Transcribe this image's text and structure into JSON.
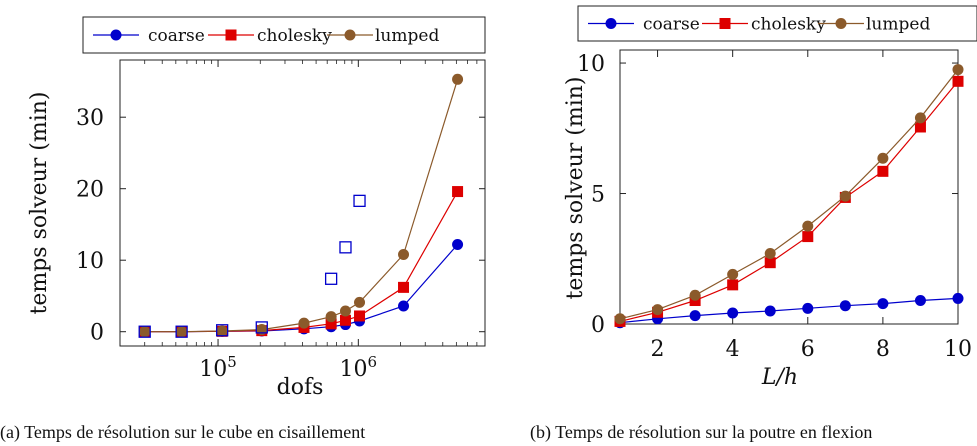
{
  "chart_data": [
    {
      "type": "line",
      "caption": "(a) Temps de résolution sur le cube en cisaillement",
      "xlabel": "dofs",
      "ylabel": "temps solveur (min)",
      "xscale": "log",
      "xlim": [
        20000,
        8000000
      ],
      "ylim": [
        -2,
        38
      ],
      "xticks": [
        {
          "value": 100000,
          "base": "10",
          "exp": "5"
        },
        {
          "value": 1000000,
          "base": "10",
          "exp": "6"
        }
      ],
      "yticks": [
        0,
        10,
        20,
        30
      ],
      "legend_position": "top",
      "series": [
        {
          "name": "coarse",
          "color": "#0000cc",
          "marker": "circle",
          "x": [
            30000,
            55000,
            107000,
            205000,
            410000,
            640000,
            810000,
            1020000,
            2100000,
            5100000
          ],
          "y": [
            0.0,
            0.0,
            0.05,
            0.1,
            0.4,
            0.7,
            1.0,
            1.5,
            3.6,
            12.2
          ]
        },
        {
          "name": "cholesky",
          "color": "#dd0000",
          "marker": "square",
          "x": [
            30000,
            55000,
            107000,
            205000,
            410000,
            640000,
            810000,
            1020000,
            2100000,
            5100000
          ],
          "y": [
            0.0,
            0.0,
            0.05,
            0.15,
            0.6,
            1.1,
            1.6,
            2.2,
            6.2,
            19.6
          ]
        },
        {
          "name": "lumped",
          "color": "#8b5a2b",
          "marker": "circle",
          "x": [
            30000,
            55000,
            107000,
            205000,
            410000,
            640000,
            810000,
            1020000,
            2100000,
            5100000
          ],
          "y": [
            0.0,
            0.0,
            0.1,
            0.3,
            1.2,
            2.1,
            2.9,
            4.1,
            10.8,
            35.3
          ]
        },
        {
          "name": "",
          "color": "#0000cc",
          "marker": "open-square",
          "line": false,
          "x": [
            30000,
            55000,
            107000,
            205000,
            640000,
            810000,
            1020000
          ],
          "y": [
            0.0,
            0.0,
            0.2,
            0.6,
            7.4,
            11.8,
            18.3
          ]
        }
      ]
    },
    {
      "type": "line",
      "caption": "(b) Temps de résolution sur la poutre en flexion",
      "xlabel": "L/h",
      "ylabel": "temps solveur (min)",
      "xlim": [
        1,
        10
      ],
      "ylim": [
        0,
        10.5
      ],
      "xticks": [
        2,
        4,
        6,
        8,
        10
      ],
      "yticks": [
        0,
        5,
        10
      ],
      "legend_position": "top",
      "series": [
        {
          "name": "coarse",
          "color": "#0000cc",
          "marker": "circle",
          "x": [
            1,
            2,
            3,
            4,
            5,
            6,
            7,
            8,
            9,
            10
          ],
          "y": [
            0.05,
            0.2,
            0.32,
            0.42,
            0.5,
            0.6,
            0.7,
            0.78,
            0.9,
            0.98
          ]
        },
        {
          "name": "cholesky",
          "color": "#dd0000",
          "marker": "square",
          "x": [
            1,
            2,
            3,
            4,
            5,
            6,
            7,
            8,
            9,
            10
          ],
          "y": [
            0.1,
            0.45,
            0.9,
            1.5,
            2.35,
            3.35,
            4.85,
            5.85,
            7.55,
            9.3
          ]
        },
        {
          "name": "lumped",
          "color": "#8b5a2b",
          "marker": "circle",
          "x": [
            1,
            2,
            3,
            4,
            5,
            6,
            7,
            8,
            9,
            10
          ],
          "y": [
            0.2,
            0.55,
            1.1,
            1.9,
            2.7,
            3.75,
            4.9,
            6.35,
            7.9,
            9.75
          ]
        }
      ]
    }
  ]
}
